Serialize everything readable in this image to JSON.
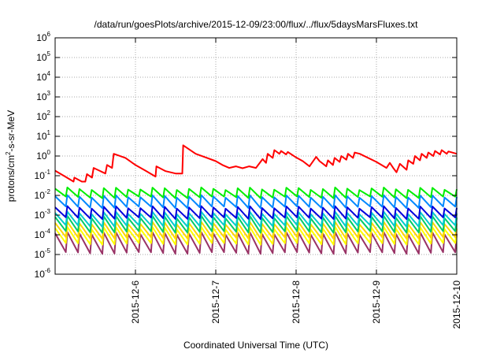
{
  "chart_data": {
    "type": "line",
    "title": "/data/run/goesPlots/archive/2015-12-09/23:00/flux/../flux/5daysMarsFluxes.txt",
    "xlabel": "Coordinated Universal Time (UTC)",
    "ylabel": "protons/cm²-s-sr-MeV",
    "ylabel_parts": {
      "base": "protons/cm",
      "sup": "2",
      "rest": "-s-sr-MeV"
    },
    "x_range": [
      "2015-12-05 00:00",
      "2015-12-10 00:00"
    ],
    "x_ticks": [
      "2015-12-6",
      "2015-12-7",
      "2015-12-8",
      "2015-12-9",
      "2015-12-10"
    ],
    "y_scale": "log",
    "ylim": [
      1e-06,
      1000000.0
    ],
    "y_ticks": [
      {
        "value": 1e-06,
        "base": "10",
        "exp": "-6"
      },
      {
        "value": 1e-05,
        "base": "10",
        "exp": "-5"
      },
      {
        "value": 0.0001,
        "base": "10",
        "exp": "-4"
      },
      {
        "value": 0.001,
        "base": "10",
        "exp": "-3"
      },
      {
        "value": 0.01,
        "base": "10",
        "exp": "-2"
      },
      {
        "value": 0.1,
        "base": "10",
        "exp": "-1"
      },
      {
        "value": 1,
        "base": "10",
        "exp": "0"
      },
      {
        "value": 10,
        "base": "10",
        "exp": "1"
      },
      {
        "value": 100,
        "base": "10",
        "exp": "2"
      },
      {
        "value": 1000,
        "base": "10",
        "exp": "3"
      },
      {
        "value": 10000,
        "base": "10",
        "exp": "4"
      },
      {
        "value": 100000,
        "base": "10",
        "exp": "5"
      },
      {
        "value": 1000000,
        "base": "10",
        "exp": "6"
      }
    ],
    "grid": true,
    "legend": "none",
    "series": [
      {
        "color": "#ff0000",
        "x": [
          "2015-12-05 00:00",
          "2015-12-05 03:00",
          "2015-12-05 05:30",
          "2015-12-05 05:45",
          "2015-12-05 08:00",
          "2015-12-05 09:00",
          "2015-12-05 09:30",
          "2015-12-05 11:00",
          "2015-12-05 11:30",
          "2015-12-05 15:00",
          "2015-12-05 15:30",
          "2015-12-05 17:00",
          "2015-12-05 17:30",
          "2015-12-05 21:00",
          "2015-12-06 00:00",
          "2015-12-06 03:00",
          "2015-12-06 06:00",
          "2015-12-06 06:15",
          "2015-12-06 09:00",
          "2015-12-06 12:00",
          "2015-12-06 14:00",
          "2015-12-06 14:15",
          "2015-12-06 16:00",
          "2015-12-06 18:00",
          "2015-12-06 21:00",
          "2015-12-07 00:00",
          "2015-12-07 02:00",
          "2015-12-07 04:00",
          "2015-12-07 06:00",
          "2015-12-07 08:00",
          "2015-12-07 10:00",
          "2015-12-07 12:00",
          "2015-12-07 14:00",
          "2015-12-07 15:00",
          "2015-12-07 15:30",
          "2015-12-07 17:00",
          "2015-12-07 17:30",
          "2015-12-07 19:00",
          "2015-12-07 19:30",
          "2015-12-07 21:00",
          "2015-12-07 21:30",
          "2015-12-08 00:00",
          "2015-12-08 02:00",
          "2015-12-08 04:00",
          "2015-12-08 06:00",
          "2015-12-08 07:00",
          "2015-12-08 09:00",
          "2015-12-08 09:30",
          "2015-12-08 11:00",
          "2015-12-08 11:30",
          "2015-12-08 13:00",
          "2015-12-08 13:30",
          "2015-12-08 15:00",
          "2015-12-08 15:30",
          "2015-12-08 17:00",
          "2015-12-08 17:30",
          "2015-12-08 19:00",
          "2015-12-09 00:00",
          "2015-12-09 03:00",
          "2015-12-09 04:00",
          "2015-12-09 05:00",
          "2015-12-09 06:00",
          "2015-12-09 07:00",
          "2015-12-09 09:00",
          "2015-12-09 09:30",
          "2015-12-09 11:00",
          "2015-12-09 11:30",
          "2015-12-09 13:00",
          "2015-12-09 13:30",
          "2015-12-09 15:00",
          "2015-12-09 15:30",
          "2015-12-09 17:00",
          "2015-12-09 17:30",
          "2015-12-09 19:00",
          "2015-12-09 19:30",
          "2015-12-09 21:00",
          "2015-12-09 21:30",
          "2015-12-10 00:00"
        ],
        "y": [
          0.18,
          0.09,
          0.05,
          0.08,
          0.05,
          0.05,
          0.12,
          0.08,
          0.25,
          0.13,
          0.35,
          0.25,
          1.3,
          0.8,
          0.35,
          0.18,
          0.09,
          0.3,
          0.17,
          0.13,
          0.13,
          3.5,
          2.2,
          1.3,
          0.85,
          0.55,
          0.35,
          0.25,
          0.3,
          0.24,
          0.3,
          0.25,
          0.7,
          0.45,
          1.3,
          0.8,
          2.0,
          1.3,
          1.8,
          1.2,
          1.6,
          0.85,
          0.55,
          0.3,
          0.9,
          0.55,
          0.3,
          0.6,
          0.35,
          0.8,
          0.5,
          1.0,
          0.65,
          1.3,
          0.8,
          1.5,
          1.3,
          0.5,
          0.25,
          0.45,
          0.25,
          0.15,
          0.4,
          0.2,
          0.6,
          0.4,
          1.0,
          0.6,
          1.3,
          0.8,
          1.5,
          1.0,
          1.8,
          1.2,
          2.0,
          1.3,
          1.7,
          1.3
        ]
      },
      {
        "color": "#00ee00",
        "sawtooth": {
          "teeth": 33,
          "peak": 0.022,
          "trough": 0.008
        }
      },
      {
        "color": "#0088ff",
        "sawtooth": {
          "teeth": 33,
          "peak": 0.009,
          "trough": 0.0025
        }
      },
      {
        "color": "#0000dd",
        "sawtooth": {
          "teeth": 33,
          "peak": 0.0025,
          "trough": 0.0007
        }
      },
      {
        "color": "#00cccc",
        "sawtooth": {
          "teeth": 33,
          "peak": 0.0013,
          "trough": 0.00028
        }
      },
      {
        "color": "#00cc66",
        "sawtooth": {
          "teeth": 33,
          "peak": 0.0008,
          "trough": 0.00014
        }
      },
      {
        "color": "#ffd700",
        "sawtooth": {
          "teeth": 33,
          "peak": 0.0004,
          "trough": 7e-05
        }
      },
      {
        "color": "#ffff00",
        "sawtooth": {
          "teeth": 33,
          "peak": 0.00022,
          "trough": 3.5e-05
        }
      },
      {
        "color": "#993366",
        "sawtooth": {
          "teeth": 33,
          "peak": 0.00012,
          "trough": 1.2e-05
        }
      }
    ]
  }
}
